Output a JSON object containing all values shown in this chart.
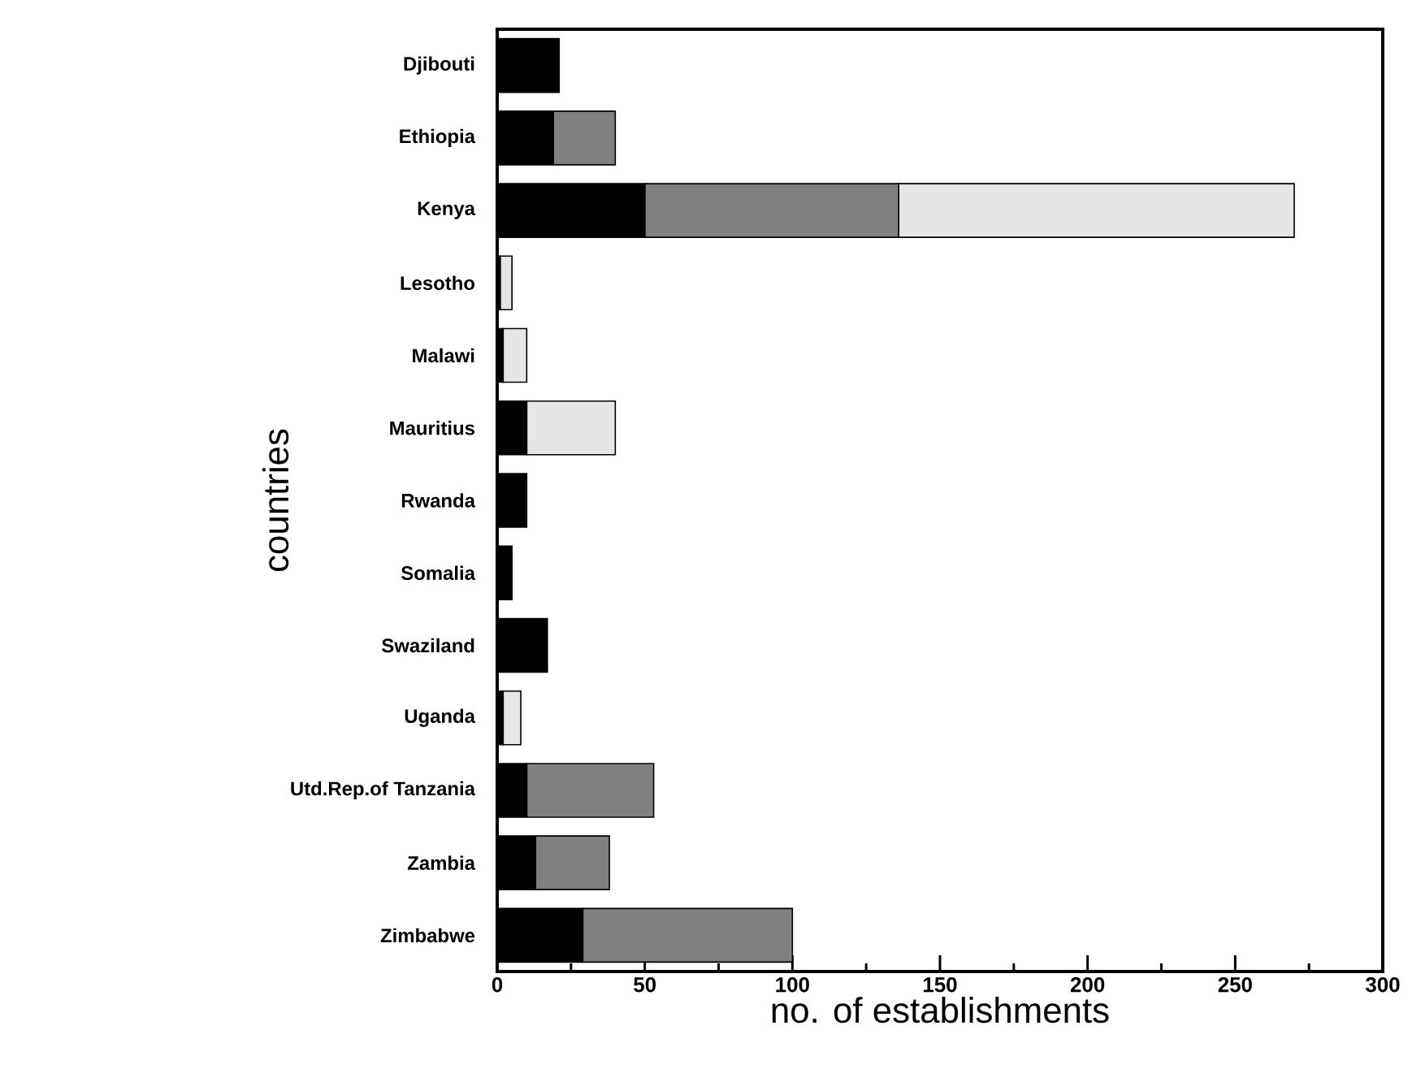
{
  "chart_data": {
    "type": "bar",
    "orientation": "horizontal",
    "stacked": true,
    "xlabel": "no. of establishments",
    "ylabel": "countries",
    "categories": [
      "Djibouti",
      "Ethiopia",
      "Kenya",
      "Lesotho",
      "Malawi",
      "Mauritius",
      "Rwanda",
      "Somalia",
      "Swaziland",
      "Uganda",
      "Utd.Rep.of Tanzania",
      "Zambia",
      "Zimbabwe"
    ],
    "series": [
      {
        "color": "#000000",
        "values": [
          21,
          19,
          50,
          1,
          2,
          10,
          10,
          5,
          17,
          2,
          10,
          13,
          29
        ]
      },
      {
        "color": "#808080",
        "values": [
          0,
          21,
          86,
          0,
          0,
          0,
          0,
          0,
          0,
          0,
          43,
          25,
          71
        ]
      },
      {
        "color": "#e6e6e6",
        "values": [
          0,
          0,
          134,
          4,
          8,
          30,
          0,
          0,
          0,
          6,
          0,
          0,
          0
        ]
      }
    ],
    "xlim": [
      0,
      300
    ],
    "xticks": [
      0,
      50,
      100,
      150,
      200,
      250,
      300
    ],
    "grid": false
  }
}
